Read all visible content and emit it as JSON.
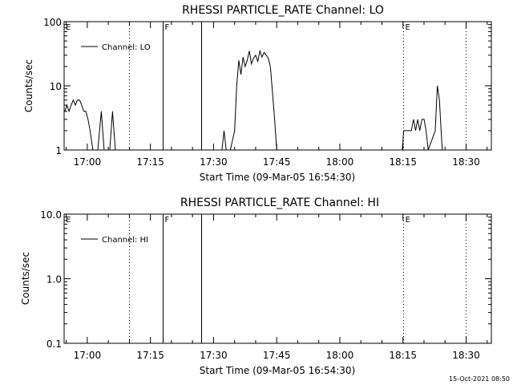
{
  "footer_date": "15-Oct-2021 08:50",
  "chart_data": [
    {
      "type": "line",
      "title": "RHESSI PARTICLE_RATE Channel: LO",
      "xlabel": "Start Time (09-Mar-05 16:54:30)",
      "ylabel": "Counts/sec",
      "y_scale": "log",
      "ylim": [
        1,
        100
      ],
      "y_ticks": [
        "1",
        "10",
        "100"
      ],
      "x_ticks": [
        "17:00",
        "17:15",
        "17:30",
        "17:45",
        "18:00",
        "18:15",
        "18:30"
      ],
      "legend_label": "Channel: LO",
      "event_lines": [
        {
          "time": "17:10",
          "style": "dotted",
          "label": ""
        },
        {
          "time": "17:18",
          "style": "solid",
          "label": "F"
        },
        {
          "time": "17:27",
          "style": "solid",
          "label": ""
        },
        {
          "time": "18:15",
          "style": "dotted",
          "label": "E"
        },
        {
          "time": "18:30",
          "style": "dotted",
          "label": ""
        }
      ],
      "corner_label": "E",
      "series": [
        {
          "name": "Channel: LO",
          "points": [
            [
              "16:54:40",
              4
            ],
            [
              "16:55:10",
              5
            ],
            [
              "16:55:40",
              4
            ],
            [
              "16:56:10",
              5
            ],
            [
              "16:56:40",
              6
            ],
            [
              "16:57:10",
              5
            ],
            [
              "16:57:40",
              6
            ],
            [
              "16:58:10",
              6
            ],
            [
              "16:58:40",
              5
            ],
            [
              "16:59:10",
              4
            ],
            [
              "16:59:40",
              4
            ],
            [
              "17:00:10",
              3
            ],
            [
              "17:00:40",
              2
            ],
            [
              "17:01:20",
              1
            ],
            [
              "17:02:30",
              1
            ],
            [
              "17:03:20",
              4
            ],
            [
              "17:04:00",
              1
            ],
            [
              "17:05:20",
              1
            ],
            [
              "17:06:00",
              4
            ],
            [
              "17:06:40",
              1
            ],
            [
              "17:15:00",
              1
            ],
            [
              "17:32:00",
              1
            ],
            [
              "17:32:30",
              2
            ],
            [
              "17:33:00",
              1
            ],
            [
              "17:34:00",
              1
            ],
            [
              "17:35:00",
              2
            ],
            [
              "17:35:30",
              10
            ],
            [
              "17:36:00",
              25
            ],
            [
              "17:36:30",
              15
            ],
            [
              "17:37:00",
              28
            ],
            [
              "17:37:30",
              20
            ],
            [
              "17:38:00",
              25
            ],
            [
              "17:38:30",
              35
            ],
            [
              "17:39:00",
              22
            ],
            [
              "17:39:30",
              27
            ],
            [
              "17:40:00",
              30
            ],
            [
              "17:40:30",
              24
            ],
            [
              "17:41:00",
              35
            ],
            [
              "17:41:30",
              28
            ],
            [
              "17:42:00",
              33
            ],
            [
              "17:42:30",
              30
            ],
            [
              "17:43:00",
              27
            ],
            [
              "17:43:30",
              20
            ],
            [
              "17:44:00",
              8
            ],
            [
              "17:44:30",
              3
            ],
            [
              "17:45:00",
              1
            ],
            [
              "18:14:50",
              1
            ],
            [
              "18:15:10",
              2
            ],
            [
              "18:16:00",
              2
            ],
            [
              "18:17:00",
              2
            ],
            [
              "18:17:30",
              3
            ],
            [
              "18:18:00",
              2
            ],
            [
              "18:18:30",
              3
            ],
            [
              "18:19:00",
              2
            ],
            [
              "18:19:30",
              3
            ],
            [
              "18:20:00",
              3
            ],
            [
              "18:20:30",
              2
            ],
            [
              "18:21:00",
              1
            ],
            [
              "18:22:40",
              2
            ],
            [
              "18:23:10",
              10
            ],
            [
              "18:23:40",
              6
            ],
            [
              "18:24:20",
              1
            ]
          ]
        }
      ]
    },
    {
      "type": "line",
      "title": "RHESSI PARTICLE_RATE Channel: HI",
      "xlabel": "Start Time (09-Mar-05 16:54:30)",
      "ylabel": "Counts/sec",
      "y_scale": "log",
      "ylim": [
        0.1,
        10
      ],
      "y_ticks": [
        "0.1",
        "1.0",
        "10.0"
      ],
      "x_ticks": [
        "17:00",
        "17:15",
        "17:30",
        "17:45",
        "18:00",
        "18:15",
        "18:30"
      ],
      "legend_label": "Channel: HI",
      "event_lines": [
        {
          "time": "17:10",
          "style": "dotted",
          "label": ""
        },
        {
          "time": "17:18",
          "style": "solid",
          "label": "F"
        },
        {
          "time": "17:27",
          "style": "solid",
          "label": ""
        },
        {
          "time": "18:15",
          "style": "dotted",
          "label": "E"
        },
        {
          "time": "18:30",
          "style": "dotted",
          "label": ""
        }
      ],
      "corner_label": "E",
      "series": [
        {
          "name": "Channel: HI",
          "points": []
        }
      ]
    }
  ]
}
